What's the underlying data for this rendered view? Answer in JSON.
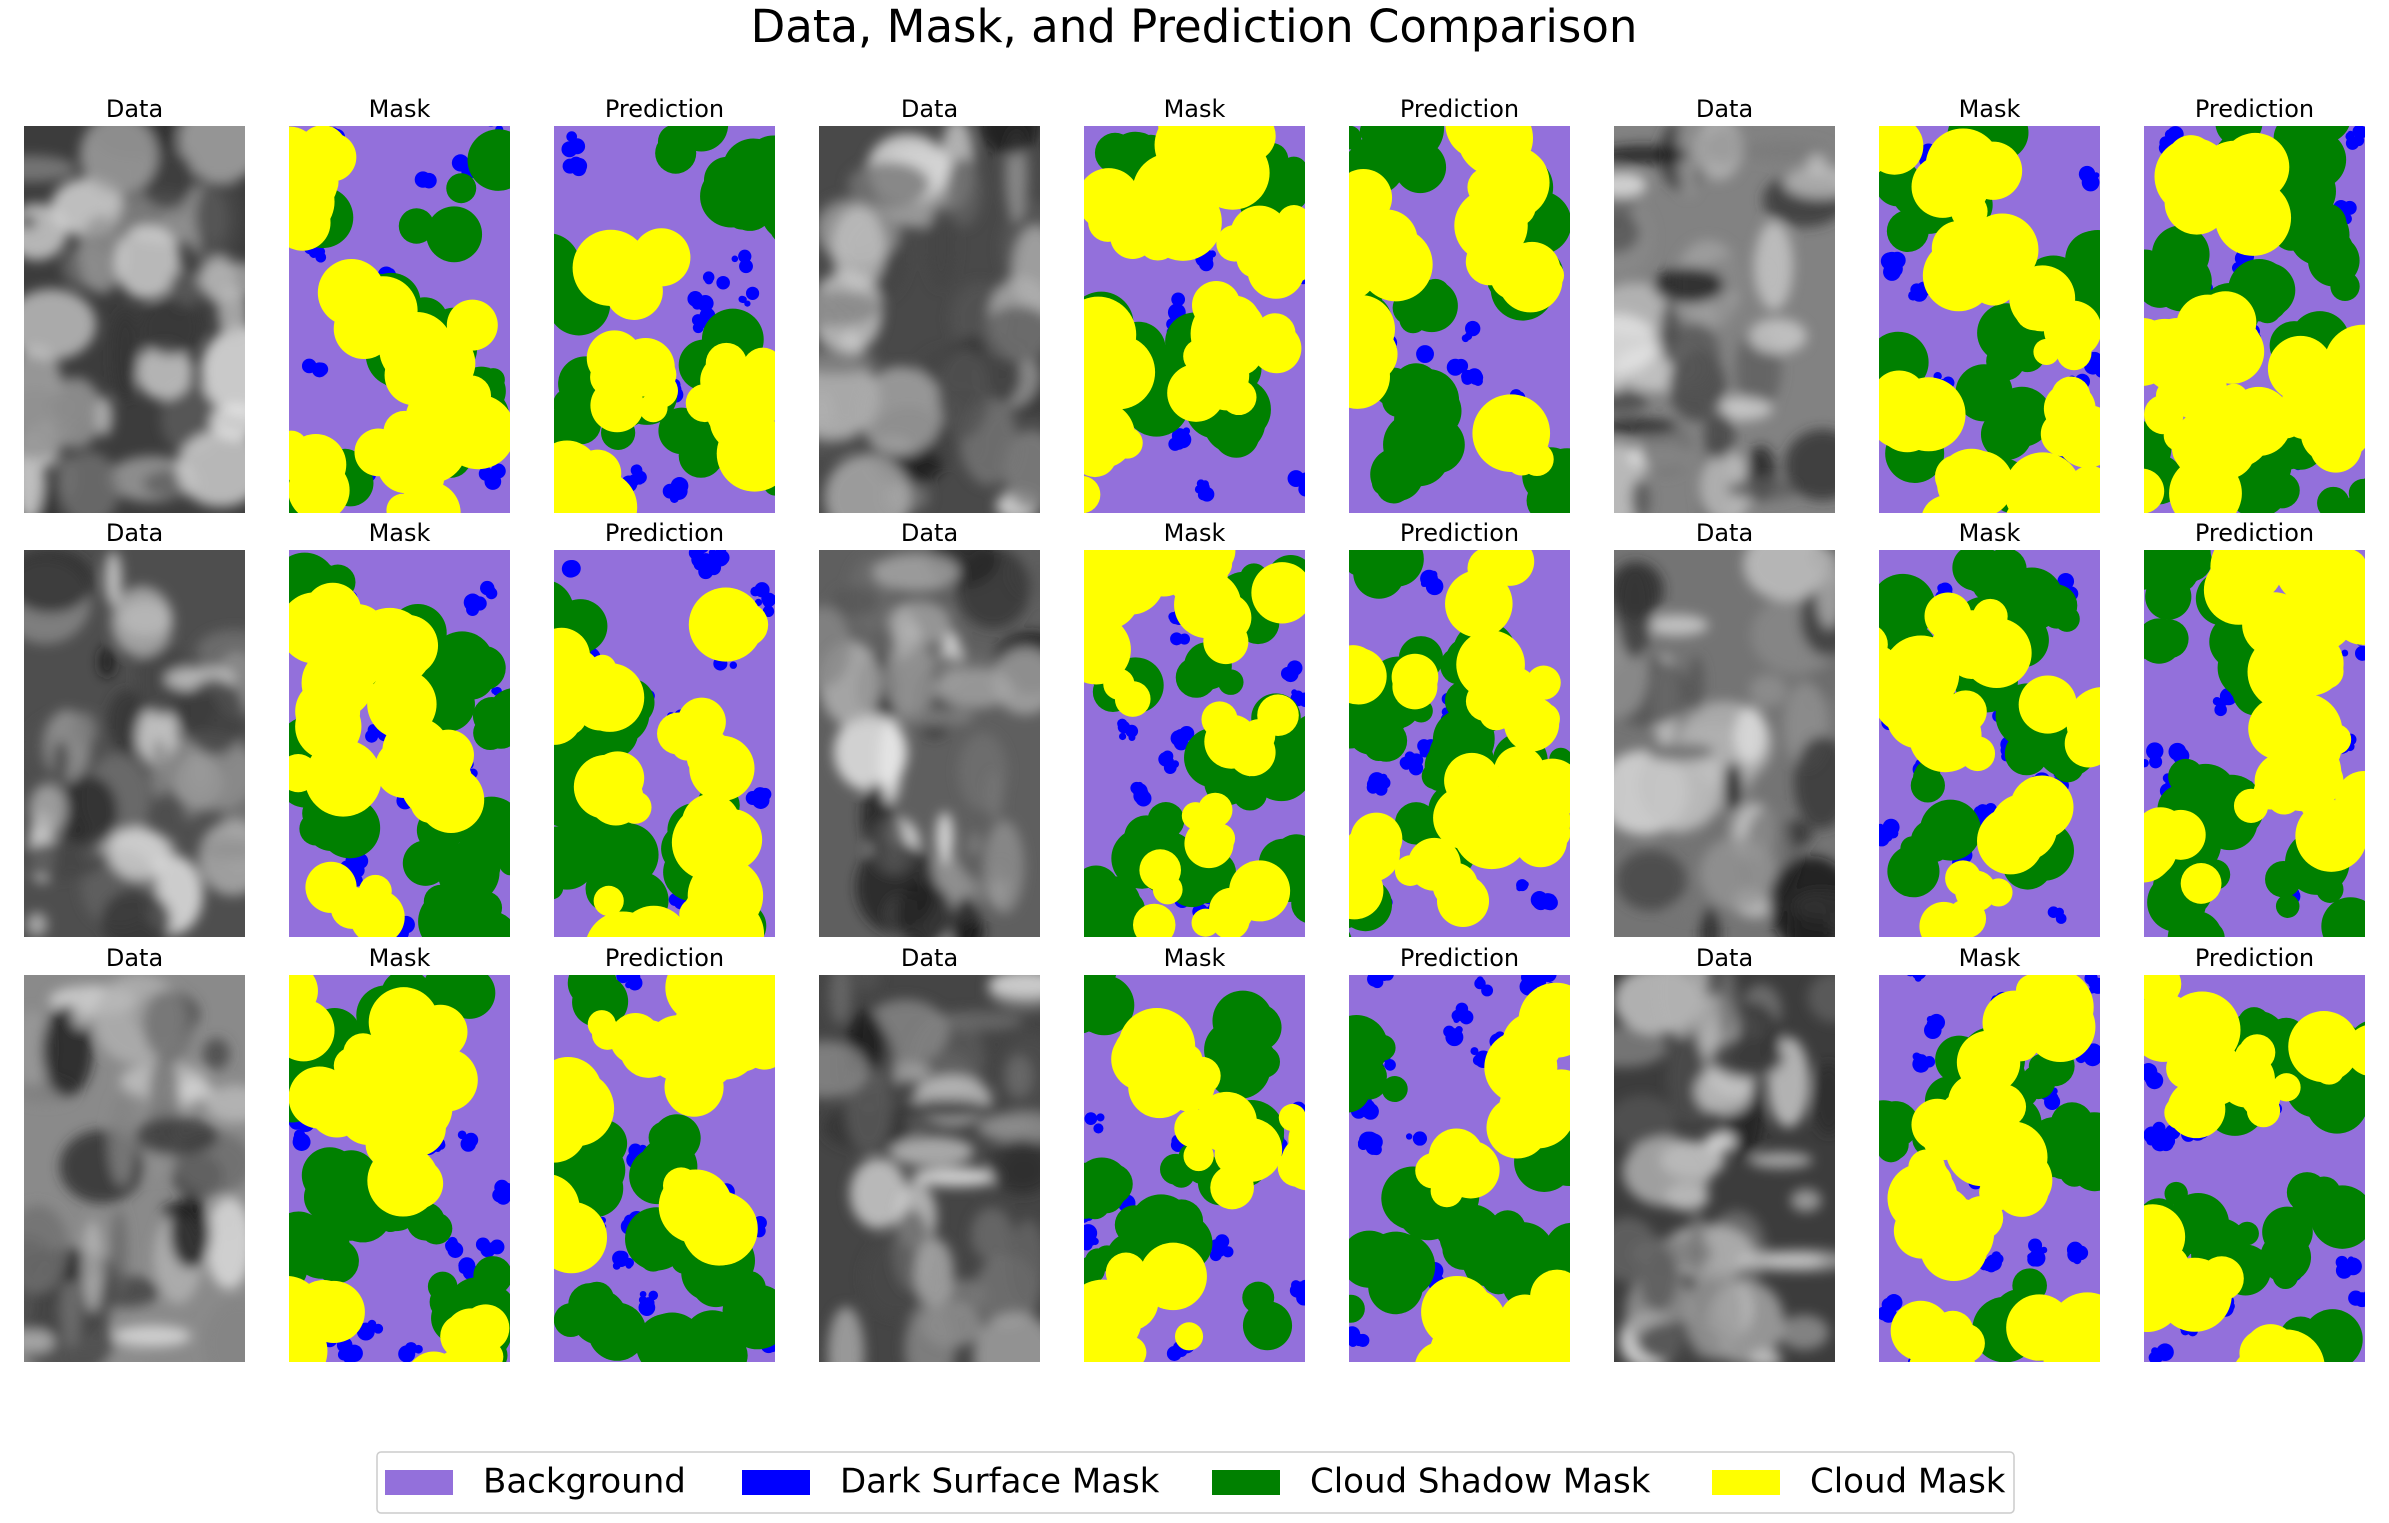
{
  "title": "Data, Mask, and Prediction Comparison",
  "rows": [
    [
      "Data",
      "Mask",
      "Prediction",
      "Data",
      "Mask",
      "Prediction",
      "Data",
      "Mask",
      "Prediction"
    ],
    [
      "Data",
      "Mask",
      "Prediction",
      "Data",
      "Mask",
      "Prediction",
      "Data",
      "Mask",
      "Prediction"
    ],
    [
      "Data",
      "Mask",
      "Prediction",
      "Data",
      "Mask",
      "Prediction",
      "Data",
      "Mask",
      "Prediction"
    ]
  ],
  "legend": [
    {
      "label": "Background",
      "color": "#9370db"
    },
    {
      "label": "Dark Surface Mask",
      "color": "#0000ff"
    },
    {
      "label": "Cloud Shadow Mask",
      "color": "#008000"
    },
    {
      "label": "Cloud Mask",
      "color": "#ffff00"
    }
  ]
}
